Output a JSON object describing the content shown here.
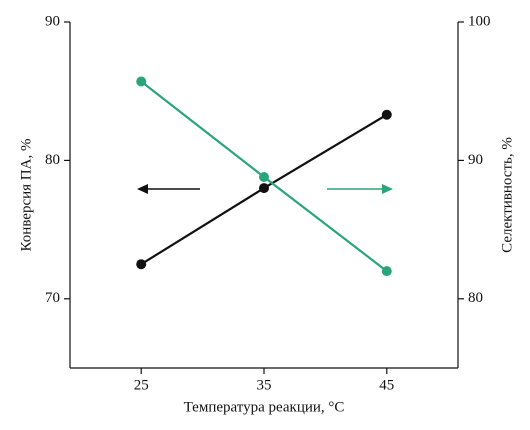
{
  "chart_data": {
    "type": "line",
    "xlabel": "Температура реакции, °C",
    "ylabel": "Конверсия ПА, %",
    "y2label": "Селективность, %",
    "x": [
      25,
      35,
      45
    ],
    "xlim": [
      19.2,
      50.8
    ],
    "xticks": [
      25,
      35,
      45
    ],
    "ylim": [
      65,
      90
    ],
    "yticks": [
      70,
      80,
      90
    ],
    "y2lim": [
      75,
      100
    ],
    "y2ticks": [
      80,
      90,
      100
    ],
    "series": [
      {
        "color": "#111111",
        "values": [
          72.5,
          78.0,
          83.3
        ]
      },
      {
        "color": "#2aa57a",
        "values": [
          95.7,
          88.8,
          82.0
        ],
        "axis": "y2"
      }
    ]
  }
}
